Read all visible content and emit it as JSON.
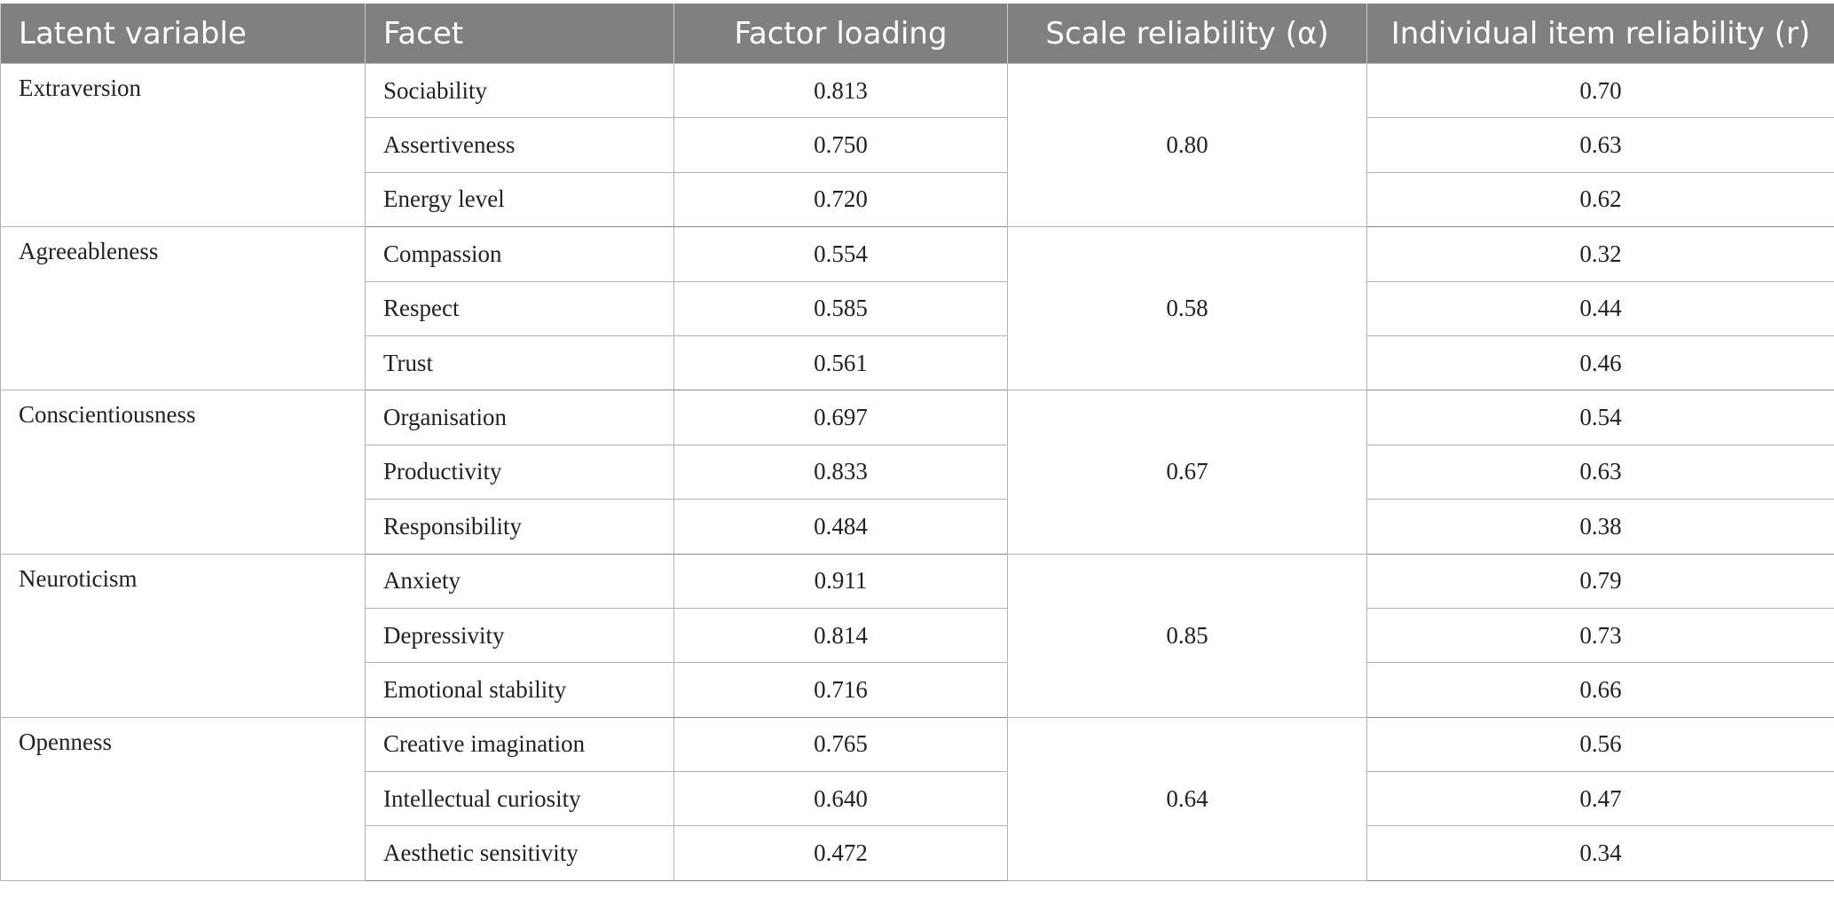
{
  "headers": {
    "latent": "Latent variable",
    "facet": "Facet",
    "loading": "Factor loading",
    "alpha": "Scale reliability (α)",
    "item": "Individual item reliability (r)"
  },
  "groups": [
    {
      "latent": "Extraversion",
      "alpha": "0.80",
      "rows": [
        {
          "facet": "Sociability",
          "loading": "0.813",
          "r": "0.70"
        },
        {
          "facet": "Assertiveness",
          "loading": "0.750",
          "r": "0.63"
        },
        {
          "facet": "Energy level",
          "loading": "0.720",
          "r": "0.62"
        }
      ]
    },
    {
      "latent": "Agreeableness",
      "alpha": "0.58",
      "rows": [
        {
          "facet": "Compassion",
          "loading": "0.554",
          "r": "0.32"
        },
        {
          "facet": "Respect",
          "loading": "0.585",
          "r": "0.44"
        },
        {
          "facet": "Trust",
          "loading": "0.561",
          "r": "0.46"
        }
      ]
    },
    {
      "latent": "Conscientiousness",
      "alpha": "0.67",
      "rows": [
        {
          "facet": "Organisation",
          "loading": "0.697",
          "r": "0.54"
        },
        {
          "facet": "Productivity",
          "loading": "0.833",
          "r": "0.63"
        },
        {
          "facet": "Responsibility",
          "loading": "0.484",
          "r": "0.38"
        }
      ]
    },
    {
      "latent": "Neuroticism",
      "alpha": "0.85",
      "rows": [
        {
          "facet": "Anxiety",
          "loading": "0.911",
          "r": "0.79"
        },
        {
          "facet": "Depressivity",
          "loading": "0.814",
          "r": "0.73"
        },
        {
          "facet": "Emotional stability",
          "loading": "0.716",
          "r": "0.66"
        }
      ]
    },
    {
      "latent": "Openness",
      "alpha": "0.64",
      "rows": [
        {
          "facet": "Creative imagination",
          "loading": "0.765",
          "r": "0.56"
        },
        {
          "facet": "Intellectual curiosity",
          "loading": "0.640",
          "r": "0.47"
        },
        {
          "facet": "Aesthetic sensitivity",
          "loading": "0.472",
          "r": "0.34"
        }
      ]
    }
  ],
  "colors": {
    "header_bg": "#7f8082",
    "header_text": "#ffffff",
    "grid": "#b3b3b3"
  }
}
